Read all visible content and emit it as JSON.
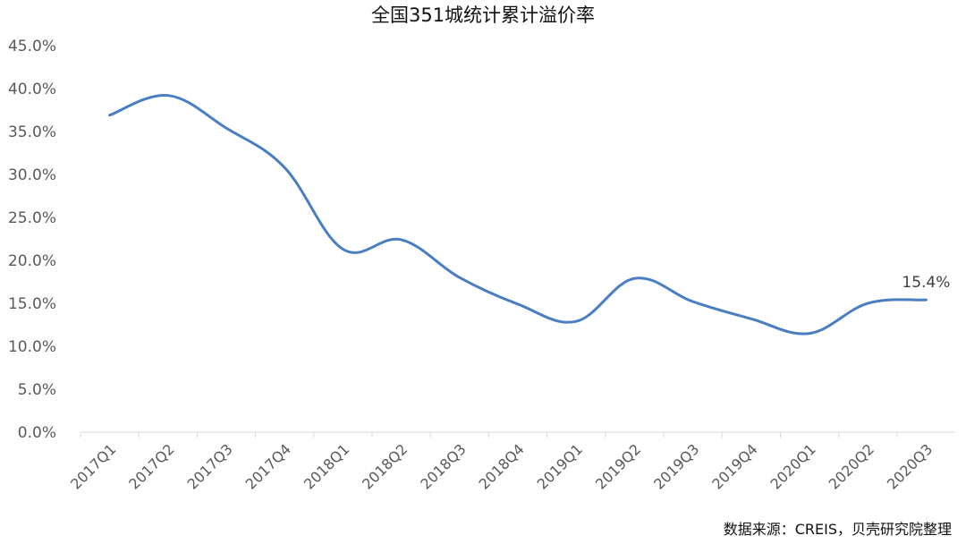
{
  "chart_data": {
    "type": "line",
    "title": "全国351城统计累计溢价率",
    "categories": [
      "2017Q1",
      "2017Q2",
      "2017Q3",
      "2017Q4",
      "2018Q1",
      "2018Q2",
      "2018Q3",
      "2018Q4",
      "2019Q1",
      "2019Q2",
      "2019Q3",
      "2019Q4",
      "2020Q1",
      "2020Q2",
      "2020Q3"
    ],
    "series": [
      {
        "values": [
          36.9,
          39.2,
          35.4,
          30.8,
          21.3,
          22.4,
          18.0,
          14.9,
          12.9,
          17.9,
          15.2,
          13.2,
          11.5,
          15.0,
          15.4
        ]
      }
    ],
    "ylim": [
      0,
      45
    ],
    "yticks": [
      0,
      5,
      10,
      15,
      20,
      25,
      30,
      35,
      40,
      45
    ],
    "ytick_labels": [
      "0.0%",
      "5.0%",
      "10.0%",
      "15.0%",
      "20.0%",
      "25.0%",
      "30.0%",
      "35.0%",
      "40.0%",
      "45.0%"
    ],
    "data_labels": [
      {
        "index": 14,
        "text": "15.4%"
      }
    ],
    "line_color": "#4a7ec3",
    "grid": false,
    "legend": "none"
  },
  "source_note": "数据来源：CREIS，贝壳研究院整理"
}
